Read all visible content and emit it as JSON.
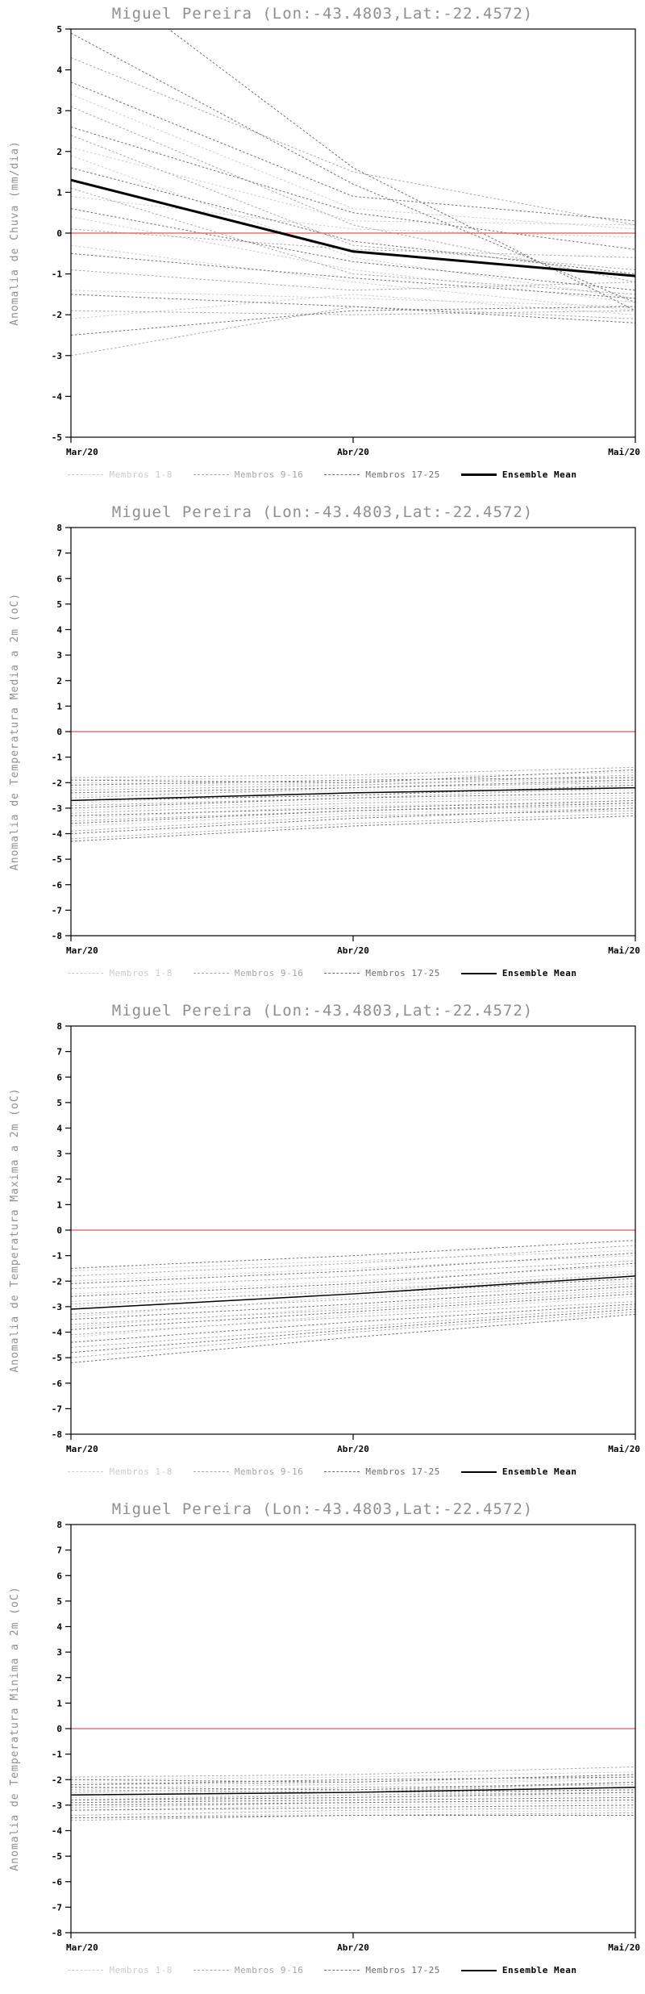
{
  "chart_data": [
    {
      "type": "line",
      "title": "Miguel Pereira (Lon:-43.4803,Lat:-22.4572)",
      "ylabel": "Anomalia de Chuva (mm/dia)",
      "x": [
        "Mar/20",
        "Abr/20",
        "Mai/20"
      ],
      "ylim": [
        -5,
        5
      ],
      "ytick_step": 1,
      "zero_line": {
        "value": 0,
        "color": "#e87070"
      },
      "ensemble_mean": {
        "name": "Ensemble Mean",
        "color": "#000000",
        "line_width": 3,
        "values": [
          1.3,
          -0.45,
          -1.05
        ]
      },
      "groups": [
        {
          "name": "Membros 1-8",
          "color": "#cccccc",
          "members": [
            [
              2.1,
              0.3,
              0.2
            ],
            [
              1.9,
              -0.6,
              -1.6
            ],
            [
              0.9,
              0.1,
              -0.1
            ],
            [
              0.4,
              -0.9,
              -1.7
            ],
            [
              -0.3,
              -1.2,
              -1.9
            ],
            [
              -1.4,
              -1.6,
              -1.8
            ],
            [
              -2.1,
              -1.5,
              -2.0
            ],
            [
              3.4,
              0.6,
              0.1
            ]
          ]
        },
        {
          "name": "Membros 9-16",
          "color": "#a6a6a6",
          "members": [
            [
              4.3,
              1.5,
              0.2
            ],
            [
              3.1,
              0.2,
              -1.2
            ],
            [
              2.4,
              -0.3,
              -0.9
            ],
            [
              1.1,
              -1.0,
              -1.5
            ],
            [
              0.1,
              -0.4,
              -0.6
            ],
            [
              -0.9,
              -1.4,
              -1.2
            ],
            [
              -1.9,
              -2.0,
              -1.9
            ],
            [
              -3.0,
              -1.8,
              -2.1
            ]
          ]
        },
        {
          "name": "Membros 17-25",
          "color": "#6e6e6e",
          "members": [
            [
              4.9,
              1.2,
              -1.7
            ],
            [
              6.8,
              1.6,
              -1.9
            ],
            [
              3.7,
              0.9,
              0.3
            ],
            [
              2.6,
              0.5,
              -0.4
            ],
            [
              1.6,
              -0.2,
              -1.0
            ],
            [
              0.6,
              -0.7,
              -1.4
            ],
            [
              -0.5,
              -1.1,
              -1.6
            ],
            [
              -1.5,
              -1.8,
              -2.2
            ],
            [
              -2.5,
              -1.9,
              -1.8
            ]
          ]
        }
      ]
    },
    {
      "type": "line",
      "title": "Miguel Pereira (Lon:-43.4803,Lat:-22.4572)",
      "ylabel": "Anomalia de Temperatura Media a 2m (oC)",
      "x": [
        "Mar/20",
        "Abr/20",
        "Mai/20"
      ],
      "ylim": [
        -8,
        8
      ],
      "ytick_step": 1,
      "zero_line": {
        "value": 0,
        "color": "#e87070"
      },
      "ensemble_mean": {
        "name": "Ensemble Mean",
        "color": "#000000",
        "line_width": 1.5,
        "values": [
          -2.7,
          -2.4,
          -2.2
        ]
      },
      "groups": [
        {
          "name": "Membros 1-8",
          "color": "#cccccc",
          "members": [
            [
              -1.9,
              -1.8,
              -1.6
            ],
            [
              -2.2,
              -2.0,
              -1.9
            ],
            [
              -2.5,
              -2.3,
              -2.1
            ],
            [
              -2.8,
              -2.4,
              -2.3
            ],
            [
              -3.1,
              -2.7,
              -2.5
            ],
            [
              -3.4,
              -2.9,
              -2.8
            ],
            [
              -3.7,
              -3.2,
              -3.0
            ],
            [
              -2.0,
              -2.1,
              -1.8
            ]
          ]
        },
        {
          "name": "Membros 9-16",
          "color": "#a6a6a6",
          "members": [
            [
              -1.8,
              -1.7,
              -1.4
            ],
            [
              -2.3,
              -2.1,
              -1.7
            ],
            [
              -2.6,
              -2.2,
              -2.0
            ],
            [
              -2.9,
              -2.6,
              -2.2
            ],
            [
              -3.2,
              -2.8,
              -2.6
            ],
            [
              -3.5,
              -3.1,
              -2.9
            ],
            [
              -3.9,
              -3.3,
              -3.1
            ],
            [
              -4.2,
              -3.6,
              -3.2
            ]
          ]
        },
        {
          "name": "Membros 17-25",
          "color": "#6e6e6e",
          "members": [
            [
              -1.9,
              -2.0,
              -1.5
            ],
            [
              -2.1,
              -1.9,
              -1.8
            ],
            [
              -2.4,
              -2.2,
              -1.9
            ],
            [
              -2.7,
              -2.5,
              -2.1
            ],
            [
              -3.0,
              -2.6,
              -2.4
            ],
            [
              -3.3,
              -3.0,
              -2.7
            ],
            [
              -3.6,
              -3.1,
              -2.8
            ],
            [
              -4.0,
              -3.4,
              -3.0
            ],
            [
              -4.3,
              -3.7,
              -3.3
            ]
          ]
        }
      ]
    },
    {
      "type": "line",
      "title": "Miguel Pereira (Lon:-43.4803,Lat:-22.4572)",
      "ylabel": "Anomalia de Temperatura Maxima a 2m (oC)",
      "x": [
        "Mar/20",
        "Abr/20",
        "Mai/20"
      ],
      "ylim": [
        -8,
        8
      ],
      "ytick_step": 1,
      "zero_line": {
        "value": 0,
        "color": "#e87070"
      },
      "ensemble_mean": {
        "name": "Ensemble Mean",
        "color": "#000000",
        "line_width": 1.5,
        "values": [
          -3.1,
          -2.5,
          -1.8
        ]
      },
      "groups": [
        {
          "name": "Membros 1-8",
          "color": "#cccccc",
          "members": [
            [
              -2.0,
              -1.5,
              -1.0
            ],
            [
              -2.5,
              -2.0,
              -1.4
            ],
            [
              -3.0,
              -2.3,
              -1.8
            ],
            [
              -3.4,
              -2.6,
              -2.0
            ],
            [
              -3.8,
              -3.0,
              -2.3
            ],
            [
              -4.2,
              -3.3,
              -2.6
            ],
            [
              -1.6,
              -1.2,
              -0.8
            ],
            [
              -2.8,
              -2.2,
              -1.6
            ]
          ]
        },
        {
          "name": "Membros 9-16",
          "color": "#a6a6a6",
          "members": [
            [
              -1.8,
              -1.3,
              -0.6
            ],
            [
              -2.3,
              -1.8,
              -1.2
            ],
            [
              -2.9,
              -2.4,
              -1.7
            ],
            [
              -3.3,
              -2.7,
              -2.1
            ],
            [
              -3.7,
              -3.1,
              -2.4
            ],
            [
              -4.1,
              -3.4,
              -2.8
            ],
            [
              -4.6,
              -3.8,
              -3.0
            ],
            [
              -5.0,
              -4.0,
              -3.2
            ]
          ]
        },
        {
          "name": "Membros 17-25",
          "color": "#6e6e6e",
          "members": [
            [
              -1.5,
              -1.0,
              -0.4
            ],
            [
              -2.1,
              -1.6,
              -0.9
            ],
            [
              -2.6,
              -2.1,
              -1.3
            ],
            [
              -3.1,
              -2.5,
              -1.9
            ],
            [
              -3.5,
              -2.9,
              -2.2
            ],
            [
              -3.9,
              -3.2,
              -2.5
            ],
            [
              -4.4,
              -3.6,
              -2.9
            ],
            [
              -4.8,
              -3.9,
              -3.1
            ],
            [
              -5.2,
              -4.2,
              -3.3
            ]
          ]
        }
      ]
    },
    {
      "type": "line",
      "title": "Miguel Pereira (Lon:-43.4803,Lat:-22.4572)",
      "ylabel": "Anomalia de Temperatura Minima a 2m (oC)",
      "x": [
        "Mar/20",
        "Abr/20",
        "Mai/20"
      ],
      "ylim": [
        -8,
        8
      ],
      "ytick_step": 1,
      "zero_line": {
        "value": 0,
        "color": "#e87070"
      },
      "ensemble_mean": {
        "name": "Ensemble Mean",
        "color": "#000000",
        "line_width": 1.5,
        "values": [
          -2.6,
          -2.5,
          -2.3
        ]
      },
      "groups": [
        {
          "name": "Membros 1-8",
          "color": "#cccccc",
          "members": [
            [
              -2.0,
              -1.9,
              -1.7
            ],
            [
              -2.3,
              -2.2,
              -2.0
            ],
            [
              -2.6,
              -2.4,
              -2.3
            ],
            [
              -2.9,
              -2.7,
              -2.6
            ],
            [
              -3.2,
              -3.0,
              -2.9
            ],
            [
              -3.5,
              -3.3,
              -3.2
            ],
            [
              -2.1,
              -2.2,
              -1.9
            ],
            [
              -2.7,
              -2.6,
              -2.4
            ]
          ]
        },
        {
          "name": "Membros 9-16",
          "color": "#a6a6a6",
          "members": [
            [
              -1.9,
              -1.8,
              -1.5
            ],
            [
              -2.2,
              -2.1,
              -1.8
            ],
            [
              -2.5,
              -2.3,
              -2.2
            ],
            [
              -2.8,
              -2.6,
              -2.5
            ],
            [
              -3.1,
              -2.9,
              -2.8
            ],
            [
              -3.4,
              -3.2,
              -3.1
            ],
            [
              -3.6,
              -3.4,
              -3.3
            ],
            [
              -2.4,
              -2.5,
              -2.1
            ]
          ]
        },
        {
          "name": "Membros 17-25",
          "color": "#6e6e6e",
          "members": [
            [
              -2.0,
              -2.1,
              -1.8
            ],
            [
              -2.3,
              -2.4,
              -2.1
            ],
            [
              -2.6,
              -2.5,
              -2.4
            ],
            [
              -2.9,
              -2.8,
              -2.7
            ],
            [
              -3.2,
              -3.1,
              -3.0
            ],
            [
              -3.5,
              -3.4,
              -3.4
            ],
            [
              -3.0,
              -2.9,
              -2.8
            ],
            [
              -2.2,
              -2.0,
              -1.9
            ],
            [
              -2.8,
              -2.7,
              -2.5
            ]
          ]
        }
      ]
    }
  ]
}
